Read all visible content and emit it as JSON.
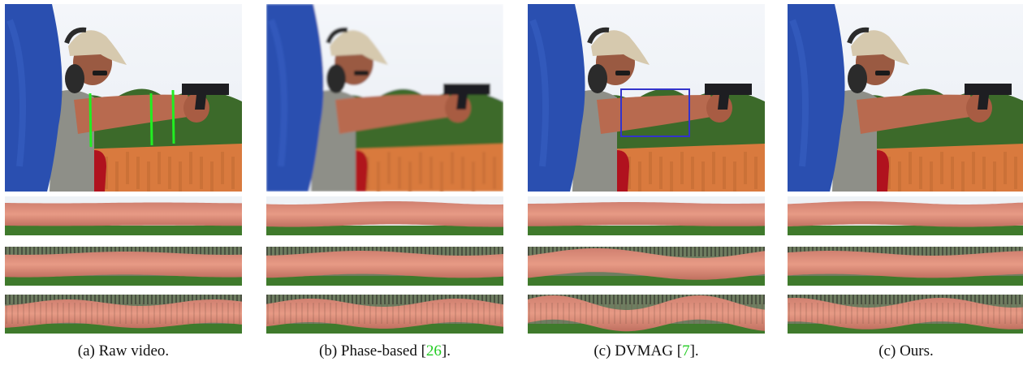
{
  "figure": {
    "panels": [
      {
        "label": "(a) Raw video.",
        "cite": "",
        "suffix": "",
        "marker": "green-lines",
        "variant": "raw"
      },
      {
        "label": "(b) Phase-based [",
        "cite": "26",
        "suffix": "].",
        "marker": "none",
        "variant": "phase"
      },
      {
        "label": "(c) DVMAG [",
        "cite": "7",
        "suffix": "].",
        "marker": "blue-box",
        "variant": "dvmag"
      },
      {
        "label": "(c) Ours.",
        "cite": "",
        "suffix": "",
        "marker": "none",
        "variant": "ours"
      }
    ],
    "colors": {
      "sky": "#e9eef4",
      "blue_shape": "#2a4fb0",
      "skin": "#b86a4f",
      "rocks": "#d97a3e",
      "trees": "#3c6a2a",
      "target": "#b0121e",
      "marker_green": "#22ee22",
      "marker_blue": "#3333cc",
      "cite_green": "#22cc22"
    }
  }
}
